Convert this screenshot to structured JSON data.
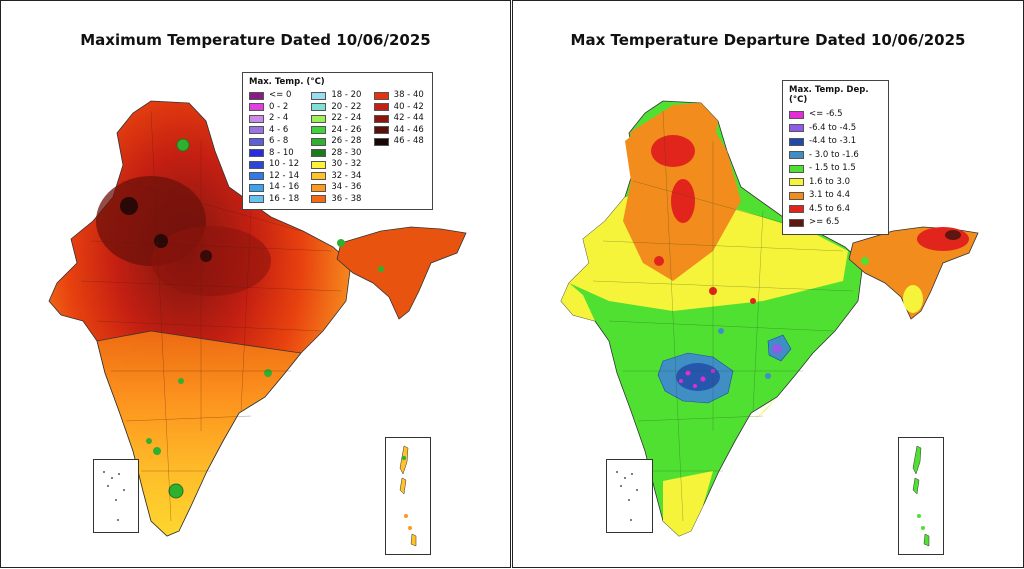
{
  "left_map": {
    "title": "Maximum Temperature Dated 10/06/2025",
    "legend_title": "Max. Temp. (°C)",
    "legend": [
      {
        "label": "<= 0",
        "color": "#8b1a89"
      },
      {
        "label": "0 - 2",
        "color": "#e040e0"
      },
      {
        "label": "2 - 4",
        "color": "#c98ce8"
      },
      {
        "label": "4 - 6",
        "color": "#9d72e2"
      },
      {
        "label": "6 - 8",
        "color": "#5e5ed6"
      },
      {
        "label": "8 - 10",
        "color": "#2a2ae0"
      },
      {
        "label": "10 - 12",
        "color": "#2b47d8"
      },
      {
        "label": "12 - 14",
        "color": "#2f7be8"
      },
      {
        "label": "14 - 16",
        "color": "#3aa5ee"
      },
      {
        "label": "16 - 18",
        "color": "#66c3f0"
      },
      {
        "label": "18 - 20",
        "color": "#9adcf2"
      },
      {
        "label": "20 - 22",
        "color": "#7fe0d6"
      },
      {
        "label": "22 - 24",
        "color": "#9cf05a"
      },
      {
        "label": "24 - 26",
        "color": "#3ed43a"
      },
      {
        "label": "26 - 28",
        "color": "#2fb02f"
      },
      {
        "label": "28 - 30",
        "color": "#1b7a1b"
      },
      {
        "label": "30 - 32",
        "color": "#fff23a"
      },
      {
        "label": "32 - 34",
        "color": "#ffc22b"
      },
      {
        "label": "34 - 36",
        "color": "#ff9a1f"
      },
      {
        "label": "36 - 38",
        "color": "#f36a14"
      },
      {
        "label": "38 - 40",
        "color": "#e8320e"
      },
      {
        "label": "40 - 42",
        "color": "#c41f12"
      },
      {
        "label": "42 - 44",
        "color": "#8e140e"
      },
      {
        "label": "44 - 46",
        "color": "#5a0f08"
      },
      {
        "label": "46 - 48",
        "color": "#1a0705"
      }
    ]
  },
  "right_map": {
    "title": "Max Temperature Departure Dated 10/06/2025",
    "legend_title": "Max. Temp. Dep. (°C)",
    "legend": [
      {
        "label": "<= -6.5",
        "color": "#e62ad8"
      },
      {
        "label": "-6.4 to -4.5",
        "color": "#8e5ce6"
      },
      {
        "label": "-4.4 to -3.1",
        "color": "#1f4aa8"
      },
      {
        "label": "- 3.0 to -1.6",
        "color": "#3f8fc4"
      },
      {
        "label": "- 1.5 to 1.5",
        "color": "#4fe032"
      },
      {
        "label": "1.6 to  3.0",
        "color": "#f6f43a"
      },
      {
        "label": "3.1 to 4.4",
        "color": "#f28c1d"
      },
      {
        "label": "4.5 to 6.4",
        "color": "#e1251c"
      },
      {
        "label": ">= 6.5",
        "color": "#5e160f"
      }
    ]
  }
}
